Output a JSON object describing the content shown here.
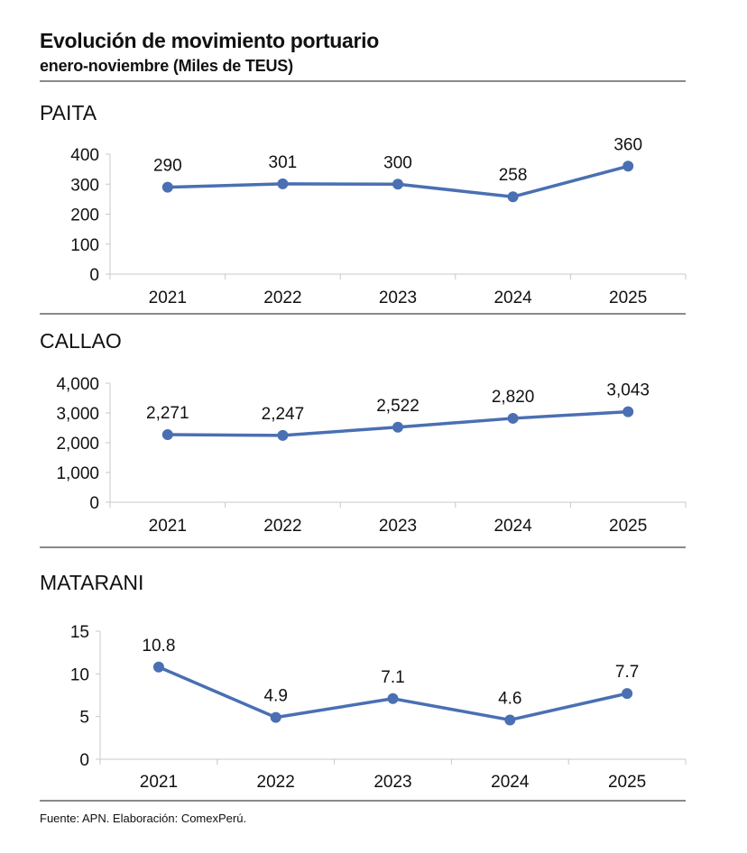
{
  "header": {
    "title": "Evolución de movimiento portuario",
    "subtitle": "enero-noviembre (Miles de TEUS)"
  },
  "footer": "Fuente: APN. Elaboración: ComexPerú.",
  "colors": {
    "line": "#4a6fb3",
    "axis": "#c8c8c8",
    "rule": "#8a8a8a"
  },
  "chart_data": [
    {
      "type": "line",
      "title": "PAITA",
      "categories": [
        "2021",
        "2022",
        "2023",
        "2024",
        "2025"
      ],
      "values": [
        290,
        301,
        300,
        258,
        360
      ],
      "data_labels": [
        "290",
        "301",
        "300",
        "258",
        "360"
      ],
      "ylim": [
        0,
        400
      ],
      "yticks": [
        "0",
        "100",
        "200",
        "300",
        "400"
      ],
      "grid": false
    },
    {
      "type": "line",
      "title": "CALLAO",
      "categories": [
        "2021",
        "2022",
        "2023",
        "2024",
        "2025"
      ],
      "values": [
        2271,
        2247,
        2522,
        2820,
        3043
      ],
      "data_labels": [
        "2,271",
        "2,247",
        "2,522",
        "2,820",
        "3,043"
      ],
      "ylim": [
        0,
        4000
      ],
      "yticks": [
        "0",
        "1,000",
        "2,000",
        "3,000",
        "4,000"
      ],
      "grid": false
    },
    {
      "type": "line",
      "title": "MATARANI",
      "categories": [
        "2021",
        "2022",
        "2023",
        "2024",
        "2025"
      ],
      "values": [
        10.8,
        4.9,
        7.1,
        4.6,
        7.7
      ],
      "data_labels": [
        "10.8",
        "4.9",
        "7.1",
        "4.6",
        "7.7"
      ],
      "ylim": [
        0,
        15
      ],
      "yticks": [
        "0",
        "5",
        "10",
        "15"
      ],
      "grid": false
    }
  ]
}
